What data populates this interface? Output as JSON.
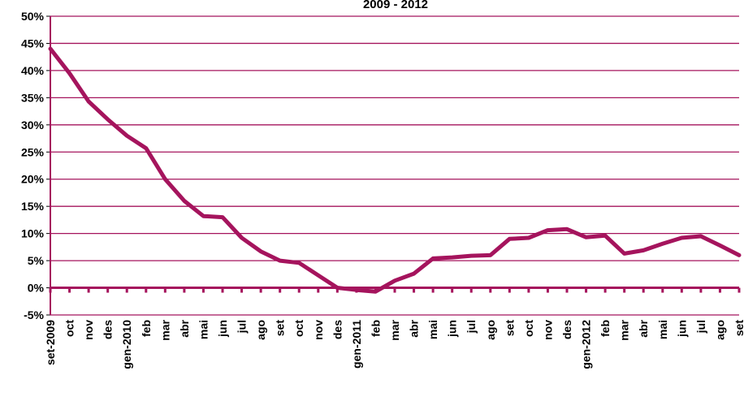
{
  "chart_data": {
    "type": "line",
    "title": "2009 - 2012",
    "xlabel": "",
    "ylabel": "",
    "ylim": [
      -5,
      50
    ],
    "yticks": [
      -5,
      0,
      5,
      10,
      15,
      20,
      25,
      30,
      35,
      40,
      45,
      50
    ],
    "ytick_labels": [
      "-5%",
      "0%",
      "5%",
      "10%",
      "15%",
      "20%",
      "25%",
      "30%",
      "35%",
      "40%",
      "45%",
      "50%"
    ],
    "grid": true,
    "legend": "none",
    "colors": {
      "line": "#a5145d",
      "grid": "#a5145d",
      "axis": "#000000"
    },
    "categories": [
      "set-2009",
      "oct",
      "nov",
      "des",
      "gen-2010",
      "feb",
      "mar",
      "abr",
      "mai",
      "jun",
      "jul",
      "ago",
      "set",
      "oct",
      "nov",
      "des",
      "gen-2011",
      "feb",
      "mar",
      "abr",
      "mai",
      "jun",
      "jul",
      "ago",
      "set",
      "oct",
      "nov",
      "des",
      "gen-2012",
      "feb",
      "mar",
      "abr",
      "mai",
      "jun",
      "jul",
      "ago",
      "set"
    ],
    "series": [
      {
        "values": [
          44,
          39.5,
          34.3,
          31,
          28,
          25.7,
          20,
          16,
          13.2,
          13,
          9.2,
          6.7,
          5,
          4.6,
          2.3,
          0,
          -0.4,
          -0.7,
          1.3,
          2.6,
          5.4,
          5.6,
          5.9,
          6,
          9,
          9.2,
          10.6,
          10.8,
          9.3,
          9.6,
          6.3,
          6.9,
          8.1,
          9.2,
          9.5,
          7.8,
          6
        ]
      }
    ]
  }
}
